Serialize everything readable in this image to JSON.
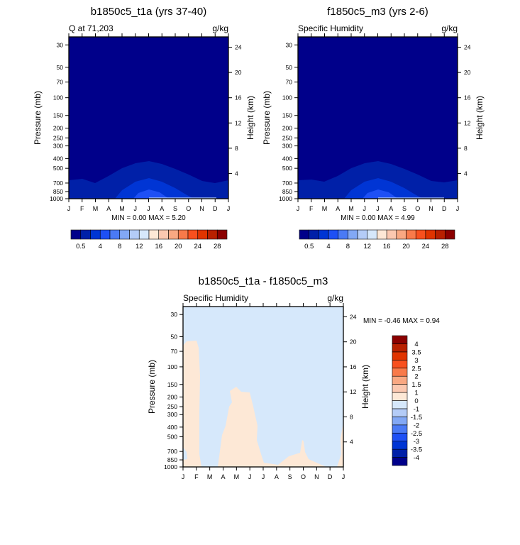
{
  "chart_data": [
    {
      "type": "contour",
      "title": "b1850c5_t1a (yrs 37-40)",
      "subtitle_left": "Q at 71,203",
      "subtitle_right": "g/kg",
      "ylabel": "Pressure (mb)",
      "ylabel_right": "Height (km)",
      "minmax": "MIN =   0.00 MAX =   5.20",
      "x_ticks": [
        "J",
        "F",
        "M",
        "A",
        "M",
        "J",
        "J",
        "A",
        "S",
        "O",
        "N",
        "D",
        "J"
      ],
      "y_ticks": [
        30,
        50,
        70,
        100,
        150,
        200,
        250,
        300,
        400,
        500,
        700,
        850,
        1000
      ],
      "y_ticks_right": [
        24,
        20,
        16,
        12,
        8,
        4
      ],
      "ylim": [
        1000,
        25
      ],
      "levels": [
        0.5,
        2,
        4,
        6,
        8,
        10,
        12,
        14,
        16,
        18,
        20,
        22,
        24,
        26,
        28
      ],
      "colorbar_labels": [
        "0.5",
        "4",
        "8",
        "12",
        "16",
        "20",
        "24",
        "28"
      ]
    },
    {
      "type": "contour",
      "title": "f1850c5_m3 (yrs 2-6)",
      "subtitle_left": "Specific Humidity",
      "subtitle_right": "g/kg",
      "ylabel": "Pressure (mb)",
      "ylabel_right": "Height (km)",
      "minmax": "MIN =   0.00 MAX =   4.99",
      "x_ticks": [
        "J",
        "F",
        "M",
        "A",
        "M",
        "J",
        "J",
        "A",
        "S",
        "O",
        "N",
        "D",
        "J"
      ],
      "y_ticks": [
        30,
        50,
        70,
        100,
        150,
        200,
        250,
        300,
        400,
        500,
        700,
        850,
        1000
      ],
      "y_ticks_right": [
        24,
        20,
        16,
        12,
        8,
        4
      ],
      "ylim": [
        1000,
        25
      ],
      "levels": [
        0.5,
        2,
        4,
        6,
        8,
        10,
        12,
        14,
        16,
        18,
        20,
        22,
        24,
        26,
        28
      ],
      "colorbar_labels": [
        "0.5",
        "4",
        "8",
        "12",
        "16",
        "20",
        "24",
        "28"
      ]
    },
    {
      "type": "contour",
      "title": "b1850c5_t1a - f1850c5_m3",
      "subtitle_left": "Specific Humidity",
      "subtitle_right": "g/kg",
      "ylabel": "Pressure (mb)",
      "ylabel_right": "Height (km)",
      "minmax": "MIN =  -0.46 MAX =   0.94",
      "x_ticks": [
        "J",
        "F",
        "M",
        "A",
        "M",
        "J",
        "J",
        "A",
        "S",
        "O",
        "N",
        "D",
        "J"
      ],
      "y_ticks": [
        30,
        50,
        70,
        100,
        150,
        200,
        250,
        300,
        400,
        500,
        700,
        850,
        1000
      ],
      "y_ticks_right": [
        24,
        20,
        16,
        12,
        8,
        4
      ],
      "ylim": [
        1000,
        25
      ],
      "levels": [
        -4,
        -3.5,
        -3,
        -2.5,
        -2,
        -1.5,
        -1,
        0,
        1,
        1.5,
        2,
        2.5,
        3,
        3.5,
        4
      ],
      "colorbar_labels": [
        "-4",
        "-3.5",
        "-3",
        "-2.5",
        "-2",
        "-1.5",
        "-1",
        "0",
        "1",
        "1.5",
        "2",
        "2.5",
        "3",
        "3.5",
        "4"
      ]
    }
  ],
  "colors": [
    "#00008a",
    "#0020a8",
    "#0035d4",
    "#1e50f5",
    "#4a7af5",
    "#82a8f5",
    "#b4ccf7",
    "#d6e8fb",
    "#fde8d6",
    "#fbc8b0",
    "#f9a882",
    "#f87a4a",
    "#f8501e",
    "#e03400",
    "#b82000",
    "#8b0000"
  ]
}
